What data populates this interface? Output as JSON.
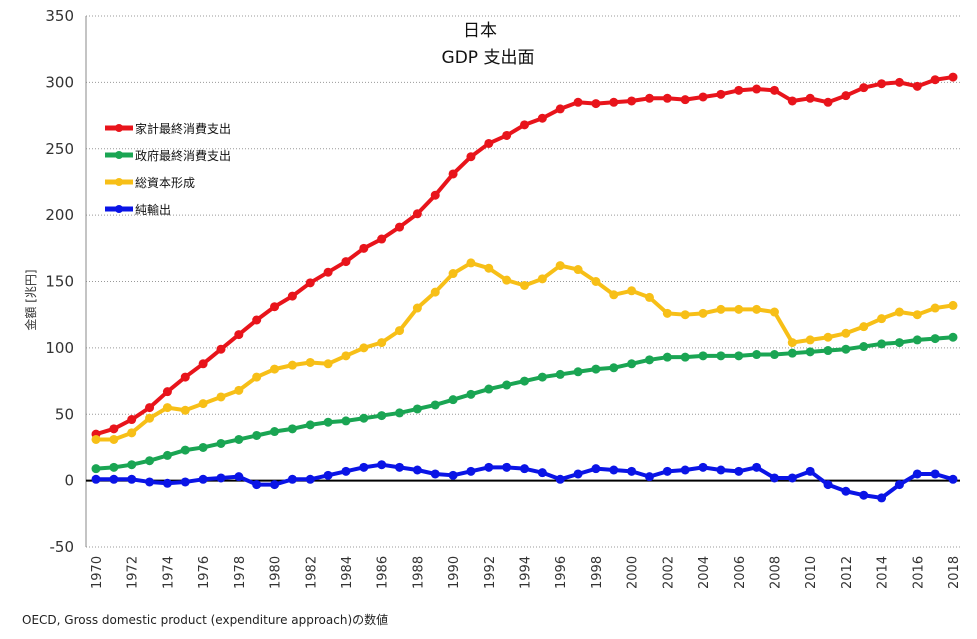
{
  "chart_data": {
    "type": "line",
    "title": [
      "日本",
      "GDP 支出面"
    ],
    "xlabel": "",
    "ylabel": "金額 [兆円]",
    "ylim": [
      -50,
      350
    ],
    "yticks": [
      -50,
      0,
      50,
      100,
      150,
      200,
      250,
      300,
      350
    ],
    "xticks": [
      1970,
      1972,
      1974,
      1976,
      1978,
      1980,
      1982,
      1984,
      1986,
      1988,
      1990,
      1992,
      1994,
      1996,
      1998,
      2000,
      2002,
      2004,
      2006,
      2008,
      2010,
      2012,
      2014,
      2016,
      2018
    ],
    "grid": "horizontal dotted",
    "legend_position": "top-left",
    "x": [
      1970,
      1971,
      1972,
      1973,
      1974,
      1975,
      1976,
      1977,
      1978,
      1979,
      1980,
      1981,
      1982,
      1983,
      1984,
      1985,
      1986,
      1987,
      1988,
      1989,
      1990,
      1991,
      1992,
      1993,
      1994,
      1995,
      1996,
      1997,
      1998,
      1999,
      2000,
      2001,
      2002,
      2003,
      2004,
      2005,
      2006,
      2007,
      2008,
      2009,
      2010,
      2011,
      2012,
      2013,
      2014,
      2015,
      2016,
      2017,
      2018
    ],
    "series": [
      {
        "name": "家計最終消費支出",
        "color": "#e8141b",
        "values": [
          35,
          39,
          46,
          55,
          67,
          78,
          88,
          99,
          110,
          121,
          131,
          139,
          149,
          157,
          165,
          175,
          182,
          191,
          201,
          215,
          231,
          244,
          254,
          260,
          268,
          273,
          280,
          285,
          284,
          285,
          286,
          288,
          288,
          287,
          289,
          291,
          294,
          295,
          294,
          286,
          288,
          285,
          290,
          296,
          299,
          300,
          297,
          302,
          304
        ]
      },
      {
        "name": "政府最終消費支出",
        "color": "#1aa553",
        "values": [
          9,
          10,
          12,
          15,
          19,
          23,
          25,
          28,
          31,
          34,
          37,
          39,
          42,
          44,
          45,
          47,
          49,
          51,
          54,
          57,
          61,
          65,
          69,
          72,
          75,
          78,
          80,
          82,
          84,
          85,
          88,
          91,
          93,
          93,
          94,
          94,
          94,
          95,
          95,
          96,
          97,
          98,
          99,
          101,
          103,
          104,
          106,
          107,
          108
        ]
      },
      {
        "name": "総資本形成",
        "color": "#f7bf17",
        "values": [
          31,
          31,
          36,
          47,
          55,
          53,
          58,
          63,
          68,
          78,
          84,
          87,
          89,
          88,
          94,
          100,
          104,
          113,
          130,
          142,
          156,
          164,
          160,
          151,
          147,
          152,
          162,
          159,
          150,
          140,
          143,
          138,
          126,
          125,
          126,
          129,
          129,
          129,
          127,
          104,
          106,
          108,
          111,
          116,
          122,
          127,
          125,
          130,
          132
        ]
      },
      {
        "name": "純輸出",
        "color": "#0a14e6",
        "values": [
          1,
          1,
          1,
          -1,
          -2,
          -1,
          1,
          2,
          3,
          -3,
          -3,
          1,
          1,
          4,
          7,
          10,
          12,
          10,
          8,
          5,
          4,
          7,
          10,
          10,
          9,
          6,
          1,
          5,
          9,
          8,
          7,
          3,
          7,
          8,
          10,
          8,
          7,
          10,
          2,
          2,
          7,
          -3,
          -8,
          -11,
          -13,
          -3,
          5,
          5,
          1
        ]
      }
    ]
  },
  "footer": {
    "source": "OECD, Gross domestic product (expenditure approach)の数値"
  }
}
